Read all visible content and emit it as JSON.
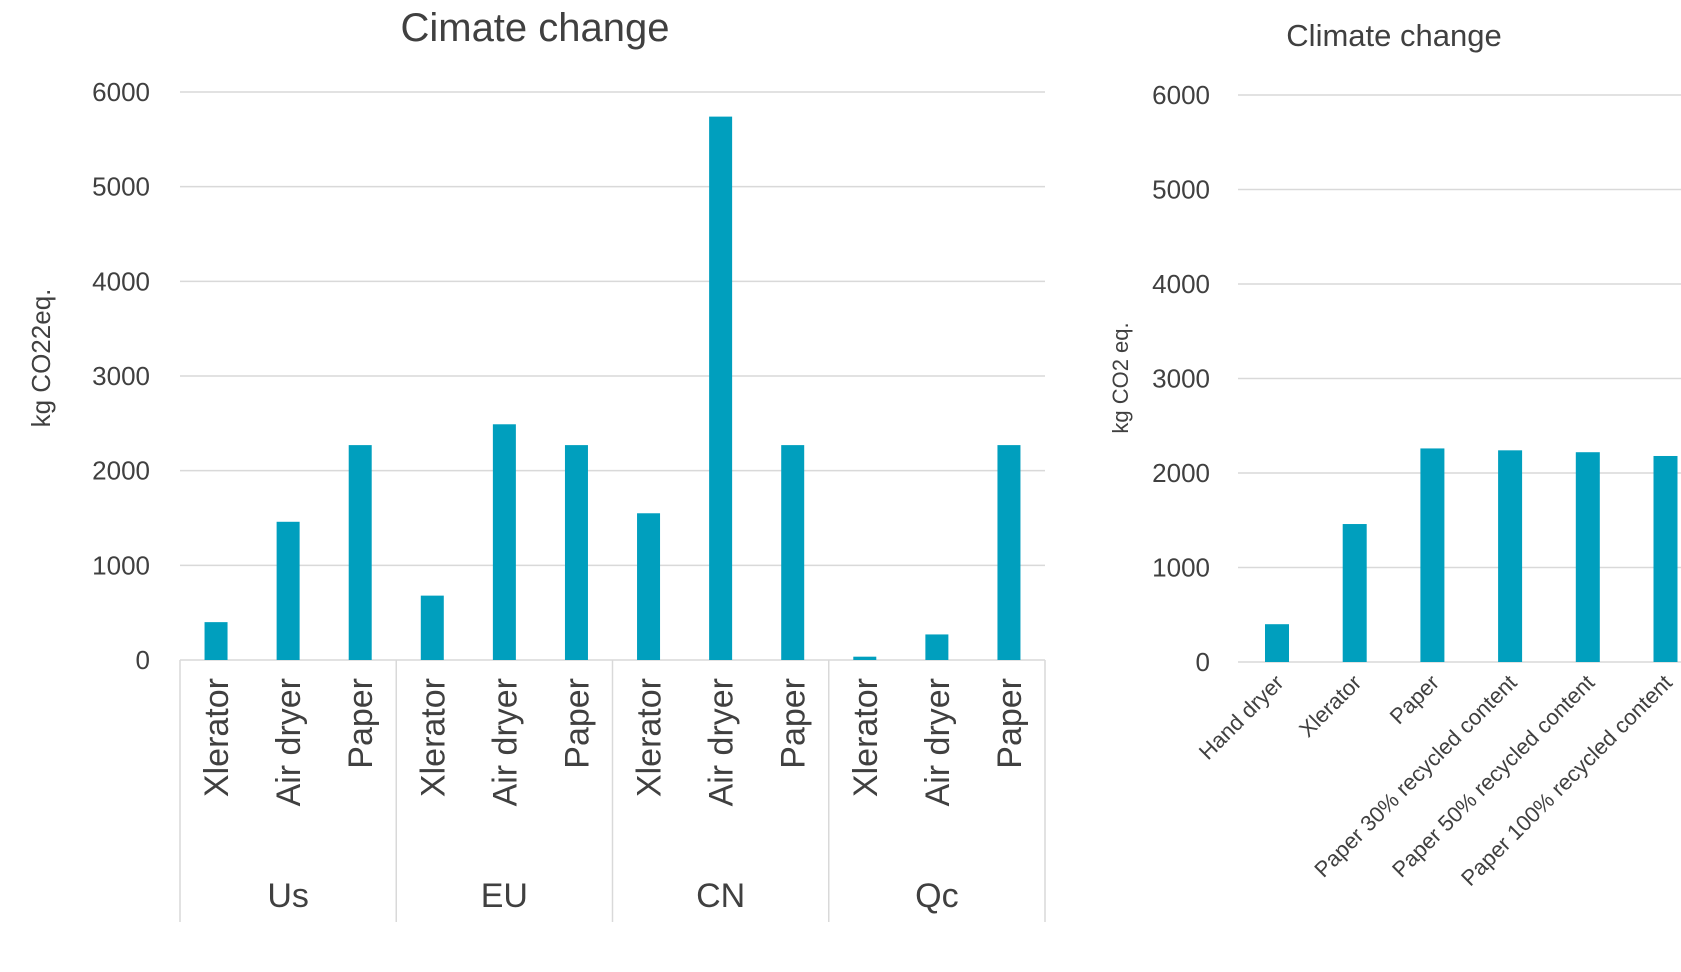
{
  "chart_data": [
    {
      "type": "bar",
      "title": "Cimate change",
      "ylabel": "kg CO22eq.",
      "ylim": [
        0,
        6000
      ],
      "yticks": [
        0,
        1000,
        2000,
        3000,
        4000,
        5000,
        6000
      ],
      "grid": true,
      "color": "#009fbe",
      "groups": [
        {
          "name": "Us",
          "categories": [
            "Xlerator",
            "Air dryer",
            "Paper"
          ],
          "values": [
            400,
            1460,
            2270
          ]
        },
        {
          "name": "EU",
          "categories": [
            "Xlerator",
            "Air dryer",
            "Paper"
          ],
          "values": [
            680,
            2490,
            2270
          ]
        },
        {
          "name": "CN",
          "categories": [
            "Xlerator",
            "Air dryer",
            "Paper"
          ],
          "values": [
            1550,
            5740,
            2270
          ]
        },
        {
          "name": "Qc",
          "categories": [
            "Xlerator",
            "Air dryer",
            "Paper"
          ],
          "values": [
            35,
            270,
            2270
          ]
        }
      ]
    },
    {
      "type": "bar",
      "title": "Climate change",
      "ylabel": "kg CO2 eq.",
      "ylim": [
        0,
        6000
      ],
      "yticks": [
        0,
        1000,
        2000,
        3000,
        4000,
        5000,
        6000
      ],
      "grid": true,
      "color": "#009fbe",
      "categories": [
        "Hand dryer",
        "Xlerator",
        "Paper",
        "Paper 30% recycled content",
        "Paper 50% recycled content",
        "Paper 100% recycled content"
      ],
      "values": [
        400,
        1460,
        2260,
        2240,
        2220,
        2180
      ]
    }
  ]
}
